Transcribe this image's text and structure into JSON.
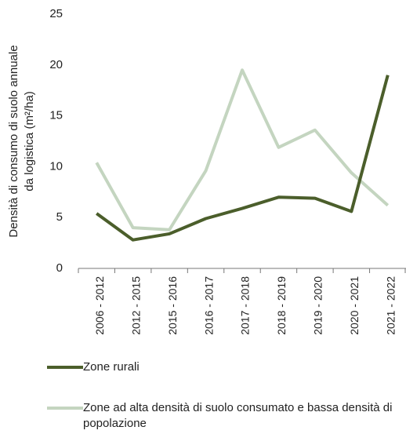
{
  "chart_data": {
    "type": "line",
    "ylabel": [
      "Densità di consumo di suolo annuale",
      "da logistica  (m²/ha)"
    ],
    "categories": [
      "2006 - 2012",
      "2012 - 2015",
      "2015 - 2016",
      "2016 - 2017",
      "2017 - 2018",
      "2018 - 2019",
      "2019 - 2020",
      "2020 - 2021",
      "2021 - 2022"
    ],
    "series": [
      {
        "name": "Zone rurali",
        "color": "#4b5e2b",
        "values": [
          5.4,
          2.8,
          3.4,
          4.9,
          5.9,
          7.0,
          6.9,
          5.6,
          19.0
        ]
      },
      {
        "name": "Zone ad alta densità di suolo consumato e bassa densità di popolazione",
        "color": "#c4d5c0",
        "values": [
          10.4,
          4.0,
          3.8,
          9.6,
          19.5,
          11.9,
          13.6,
          9.4,
          6.2
        ]
      }
    ],
    "ylim": [
      0,
      25
    ],
    "yticks": [
      0,
      5,
      10,
      15,
      20,
      25
    ],
    "grid": false
  }
}
